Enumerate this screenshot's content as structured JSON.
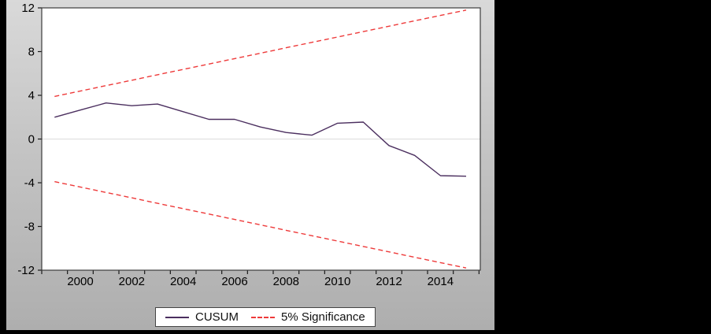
{
  "chart_data": {
    "type": "line",
    "title": "",
    "xlabel": "",
    "ylabel": "",
    "x_years": [
      1999,
      2000,
      2001,
      2002,
      2003,
      2004,
      2005,
      2006,
      2007,
      2008,
      2009,
      2010,
      2011,
      2012,
      2013,
      2014,
      2015
    ],
    "obs_offset": 0.5,
    "series": [
      {
        "name": "CUSUM",
        "color": "#4b2f5f",
        "dash": false,
        "values": [
          2.0,
          2.65,
          3.3,
          3.05,
          3.2,
          2.5,
          1.8,
          1.8,
          1.1,
          0.6,
          0.35,
          1.45,
          1.55,
          -0.6,
          -1.5,
          -3.35,
          -3.4
        ]
      },
      {
        "name": "5% Significance (upper)",
        "color": "#ee3a3a",
        "dash": true,
        "values": [
          3.9,
          4.39,
          4.89,
          5.38,
          5.88,
          6.37,
          6.86,
          7.36,
          7.85,
          8.35,
          8.84,
          9.33,
          9.83,
          10.32,
          10.82,
          11.31,
          11.8
        ]
      },
      {
        "name": "5% Significance (lower)",
        "color": "#ee3a3a",
        "dash": true,
        "values": [
          -3.9,
          -4.39,
          -4.89,
          -5.38,
          -5.88,
          -6.37,
          -6.86,
          -7.36,
          -7.85,
          -8.35,
          -8.84,
          -9.33,
          -9.83,
          -10.32,
          -10.82,
          -11.31,
          -11.8
        ]
      }
    ],
    "xlim": [
      1999,
      2016.05
    ],
    "ylim": [
      -12,
      12
    ],
    "y_ticks": [
      -12,
      -8,
      -4,
      0,
      4,
      8,
      12
    ],
    "y_tick_labels": [
      "-12",
      "-8",
      "-4",
      "0",
      "4",
      "8",
      "12"
    ],
    "x_tick_years": [
      1999,
      2000,
      2001,
      2002,
      2003,
      2004,
      2005,
      2006,
      2007,
      2008,
      2009,
      2010,
      2011,
      2012,
      2013,
      2014,
      2015,
      2016
    ],
    "x_label_years": [
      2000,
      2002,
      2004,
      2006,
      2008,
      2010,
      2012,
      2014
    ],
    "x_label_texts": [
      "2000",
      "2002",
      "2004",
      "2006",
      "2008",
      "2010",
      "2012",
      "2014"
    ],
    "grid": "zero-line-only",
    "legend_position": "bottom-center"
  },
  "legend": {
    "items": [
      {
        "label": "CUSUM"
      },
      {
        "label": "5% Significance"
      }
    ]
  },
  "colors": {
    "outer_background": "#000000",
    "chart_background_top": "#d9d9d9",
    "chart_background_mid": "#c4c4c4",
    "chart_background_bottom": "#aeaeae",
    "plot_background": "#ffffff",
    "frame": "#3c3c3c",
    "zero_line": "#dcdcdc",
    "tick": "#1a1a1a",
    "tick_label": "#000000",
    "cusum_line": "#4b2f5f",
    "significance_line": "#ee3a3a",
    "legend_border": "#444444",
    "legend_background": "#ffffff"
  }
}
